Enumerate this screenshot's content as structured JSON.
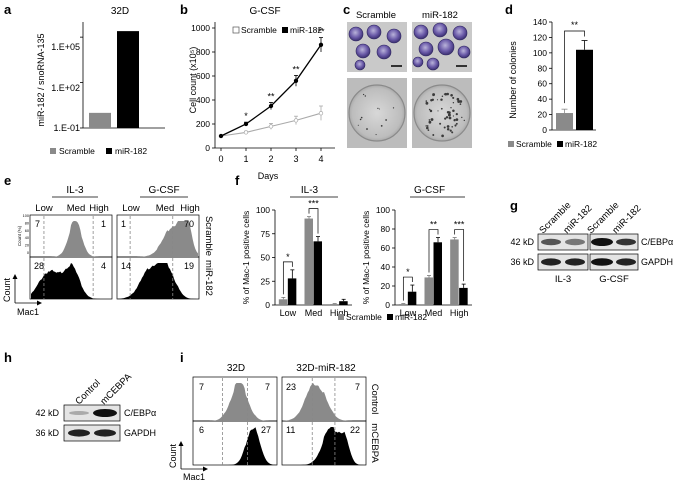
{
  "figure": {
    "panel_labels": [
      "a",
      "b",
      "c",
      "d",
      "e",
      "f",
      "g",
      "h",
      "i"
    ]
  },
  "colors": {
    "scramble": "#8a8a8a",
    "mir182": "#000000",
    "hist_gray": "#8a8a8a",
    "hist_black": "#000000",
    "dash": "#888888"
  },
  "panel_a": {
    "title": "32D",
    "ylabel": "miR-182 / snoRNA-135",
    "legend": [
      "Scramble",
      "miR-182"
    ],
    "chart_data": {
      "type": "bar",
      "scale": "log",
      "categories": [
        "Scramble",
        "miR-182"
      ],
      "values": [
        1,
        250000
      ],
      "ytick_labels": [
        "1.E-01",
        "1.E+02",
        "1.E+05"
      ],
      "ylim": [
        0.1,
        1000000
      ]
    }
  },
  "panel_b": {
    "title": "G-CSF",
    "xlabel": "Days",
    "ylabel": "Cell count (x10⁵)",
    "legend": [
      "Scramble",
      "miR-182"
    ],
    "significance": [
      "*",
      "**",
      "**",
      "**"
    ],
    "chart_data": {
      "type": "line",
      "x": [
        0,
        1,
        2,
        3,
        4
      ],
      "series": [
        {
          "name": "Scramble",
          "values": [
            100,
            130,
            180,
            230,
            290
          ],
          "err": [
            0,
            10,
            25,
            35,
            60
          ]
        },
        {
          "name": "miR-182",
          "values": [
            100,
            200,
            350,
            560,
            860
          ],
          "err": [
            0,
            15,
            30,
            45,
            60
          ]
        }
      ],
      "ylim": [
        0,
        1000
      ],
      "yticks": [
        0,
        200,
        400,
        600,
        800,
        1000
      ]
    }
  },
  "panel_c": {
    "labels": [
      "Scramble",
      "miR-182"
    ]
  },
  "panel_d": {
    "ylabel": "Number of colonies",
    "legend": [
      "Scramble",
      "miR-182"
    ],
    "significance": "**",
    "chart_data": {
      "type": "bar",
      "categories": [
        "Scramble",
        "miR-182"
      ],
      "values": [
        22,
        104
      ],
      "err": [
        5,
        12
      ],
      "ylim": [
        0,
        140
      ],
      "yticks": [
        0,
        20,
        40,
        60,
        80,
        100,
        120,
        140
      ]
    }
  },
  "panel_e": {
    "condition1": "IL-3",
    "condition2": "G-CSF",
    "gate_labels": [
      "Low",
      "Med",
      "High"
    ],
    "row_labels": [
      "Scramble",
      "miR-182"
    ],
    "ylabel": "Count",
    "xlabel": "Mac1",
    "axis_tiny": "Count (%)",
    "numbers": {
      "il3_scramble": [
        "7",
        "1"
      ],
      "il3_mir": [
        "28",
        "4"
      ],
      "gcsf_scramble": [
        "1",
        "70"
      ],
      "gcsf_mir": [
        "14",
        "19"
      ]
    }
  },
  "panel_f": {
    "legend": [
      "Scramble",
      "miR-182"
    ],
    "charts": [
      {
        "title": "IL-3",
        "ylabel": "% of Mac-1 positive cells",
        "chart_data": {
          "type": "bar",
          "categories": [
            "Low",
            "Med",
            "High"
          ],
          "series": [
            {
              "name": "Scramble",
              "values": [
                6,
                91,
                1
              ],
              "err": [
                2,
                2,
                0.5
              ]
            },
            {
              "name": "miR-182",
              "values": [
                28,
                67,
                4
              ],
              "err": [
                9,
                5,
                2
              ]
            }
          ],
          "ylim": [
            0,
            100
          ],
          "yticks": [
            0,
            25,
            50,
            75,
            100
          ],
          "significance": [
            "*",
            "***",
            ""
          ]
        }
      },
      {
        "title": "G-CSF",
        "ylabel": "% of Mac-1 positive cells",
        "chart_data": {
          "type": "bar",
          "categories": [
            "Low",
            "Med",
            "High"
          ],
          "series": [
            {
              "name": "Scramble",
              "values": [
                1,
                29,
                69
              ],
              "err": [
                0.5,
                2,
                2
              ]
            },
            {
              "name": "miR-182",
              "values": [
                14,
                66,
                18
              ],
              "err": [
                7,
                5,
                4
              ]
            }
          ],
          "ylim": [
            0,
            100
          ],
          "yticks": [
            0,
            20,
            40,
            60,
            80,
            100
          ],
          "significance": [
            "*",
            "**",
            "***"
          ]
        }
      }
    ]
  },
  "panel_g": {
    "lanes": [
      "Scramble",
      "miR-182",
      "Scramble",
      "miR-182"
    ],
    "bands": [
      {
        "kd": "42 kD",
        "name": "C/EBPα"
      },
      {
        "kd": "36 kD",
        "name": "GAPDH"
      }
    ],
    "groups": [
      "IL-3",
      "G-CSF"
    ]
  },
  "panel_h": {
    "lanes": [
      "Control",
      "mCEBPA"
    ],
    "bands": [
      {
        "kd": "42 kD",
        "name": "C/EBPα"
      },
      {
        "kd": "36 kD",
        "name": "GAPDH"
      }
    ]
  },
  "panel_i": {
    "columns": [
      "32D",
      "32D-miR-182"
    ],
    "row_labels": [
      "Control",
      "mCEBPA"
    ],
    "ylabel": "Count",
    "xlabel": "Mac1",
    "numbers": {
      "d32_control": [
        "7",
        "7"
      ],
      "d32_mcebpa": [
        "6",
        "27"
      ],
      "mir_control": [
        "23",
        "7"
      ],
      "mir_mcebpa": [
        "11",
        "22"
      ]
    }
  }
}
